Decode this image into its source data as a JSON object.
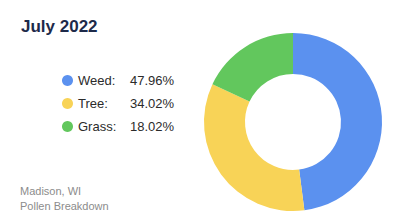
{
  "chart_data": {
    "type": "pie",
    "title": "July 2022",
    "categories": [
      "Weed:",
      "Tree:",
      "Grass:"
    ],
    "values": [
      47.96,
      34.02,
      18.02
    ],
    "value_labels": [
      "47.96%",
      "34.02%",
      "18.02%"
    ],
    "colors": [
      "#5b91ef",
      "#f8d357",
      "#62c75d"
    ],
    "legend": "left",
    "annotations": [
      "Madison, WI",
      "Pollen Breakdown"
    ]
  }
}
